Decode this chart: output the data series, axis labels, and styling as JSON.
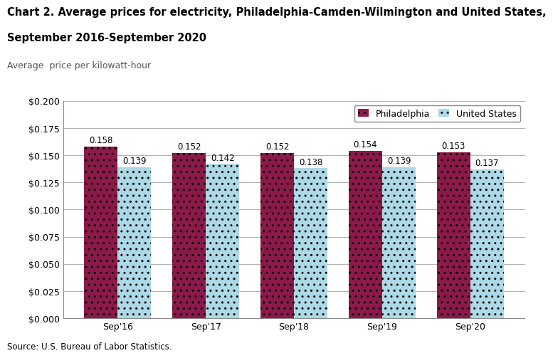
{
  "title_line1": "Chart 2. Average prices for electricity, Philadelphia-Camden-Wilmington and United States,",
  "title_line2": "September 2016-September 2020",
  "ylabel": "Average  price per kilowatt-hour",
  "source": "Source: U.S. Bureau of Labor Statistics.",
  "categories": [
    "Sep'16",
    "Sep'17",
    "Sep'18",
    "Sep'19",
    "Sep'20"
  ],
  "philadelphia": [
    0.158,
    0.152,
    0.152,
    0.154,
    0.153
  ],
  "us": [
    0.139,
    0.142,
    0.138,
    0.139,
    0.137
  ],
  "philadelphia_color": "#8B1A4A",
  "us_color": "#ADD8E6",
  "bar_width": 0.38,
  "ylim": [
    0.0,
    0.2
  ],
  "yticks": [
    0.0,
    0.025,
    0.05,
    0.075,
    0.1,
    0.125,
    0.15,
    0.175,
    0.2
  ],
  "legend_philadelphia": "Philadelphia",
  "legend_us": "United States",
  "background_color": "#ffffff",
  "grid_color": "#b0b0b0",
  "title_fontsize": 10.5,
  "label_fontsize": 9,
  "tick_fontsize": 9,
  "annotation_fontsize": 8.5,
  "source_fontsize": 8.5
}
